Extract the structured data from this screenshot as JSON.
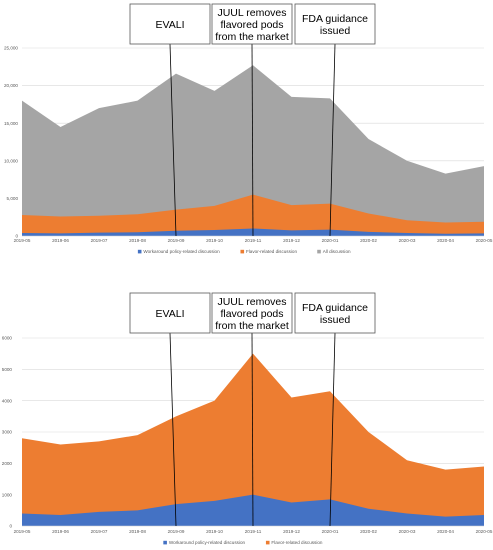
{
  "chart_data": [
    {
      "type": "area",
      "stacking": "overlay",
      "x": [
        "2019-05",
        "2019-06",
        "2019-07",
        "2019-08",
        "2019-09",
        "2019-10",
        "2019-11",
        "2019-12",
        "2020-01",
        "2020-02",
        "2020-03",
        "2020-04",
        "2020-05"
      ],
      "ylim": [
        0,
        25000
      ],
      "yticks": [
        "0",
        "5,000",
        "10,000",
        "15,000",
        "20,000",
        "25,000"
      ],
      "grid": true,
      "legend_position": "bottom",
      "series": [
        {
          "name": "All discussion",
          "color": "#a5a5a5",
          "values": [
            18000,
            14500,
            17000,
            18000,
            21600,
            19300,
            22700,
            18500,
            18300,
            12900,
            10000,
            8300,
            9300
          ]
        },
        {
          "name": "Flavor-related discussion",
          "color": "#ed7d31",
          "values": [
            2800,
            2600,
            2700,
            2900,
            3500,
            4000,
            5500,
            4100,
            4300,
            3000,
            2100,
            1800,
            1900
          ]
        },
        {
          "name": "Workaround policy-related discussion",
          "color": "#4472c4",
          "values": [
            400,
            350,
            450,
            500,
            700,
            800,
            1000,
            750,
            850,
            550,
            400,
            300,
            350
          ]
        }
      ]
    },
    {
      "type": "area",
      "stacking": "overlay",
      "x": [
        "2019-05",
        "2019-06",
        "2019-07",
        "2019-08",
        "2019-09",
        "2019-10",
        "2019-11",
        "2019-12",
        "2020-01",
        "2020-02",
        "2020-03",
        "2020-04",
        "2020-05"
      ],
      "ylim": [
        0,
        6000
      ],
      "yticks": [
        "0",
        "1000",
        "2000",
        "3000",
        "4000",
        "5000",
        "6000"
      ],
      "grid": true,
      "legend_position": "bottom",
      "series": [
        {
          "name": "Flavor-related discussion",
          "color": "#ed7d31",
          "values": [
            2800,
            2600,
            2700,
            2900,
            3500,
            4000,
            5500,
            4100,
            4300,
            3000,
            2100,
            1800,
            1900
          ]
        },
        {
          "name": "Workaround policy-related discussion",
          "color": "#4472c4",
          "values": [
            400,
            350,
            450,
            500,
            700,
            800,
            1000,
            750,
            850,
            550,
            400,
            300,
            350
          ]
        }
      ]
    }
  ],
  "annotations": [
    {
      "lines": [
        "EVALI"
      ],
      "at": "2019-09",
      "tilt": 0.1
    },
    {
      "lines": [
        "JUUL removes",
        "flavored pods",
        "from the market"
      ],
      "at": "2019-11",
      "tilt": -0.05
    },
    {
      "lines": [
        "FDA guidance",
        "issued"
      ],
      "at": "2020-01",
      "tilt": -0.05
    }
  ]
}
